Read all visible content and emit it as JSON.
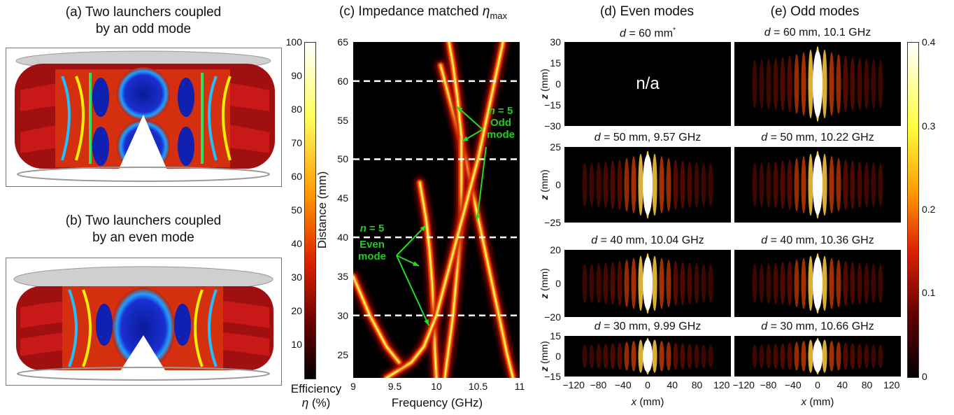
{
  "panels": {
    "a": {
      "title_line1": "(a) Two launchers coupled",
      "title_line2": "by an odd mode"
    },
    "b": {
      "title_line1": "(b) Two launchers coupled",
      "title_line2": "by an even mode"
    },
    "c": {
      "title_prefix": "(c) Impedance matched ",
      "title_symbol": "η",
      "title_sub": "max"
    },
    "d": {
      "title": "(d) Even modes"
    },
    "e": {
      "title": "(e) Odd modes"
    }
  },
  "efficiency_colorbar": {
    "ticks": [
      "100",
      "90",
      "80",
      "70",
      "60",
      "50",
      "40",
      "30",
      "20",
      "10"
    ],
    "label_line1": "Efficiency",
    "label_line2_symbol": "η",
    "label_line2_unit": " (%)",
    "colors": {
      "top": "#ffffff",
      "mid1": "#ffff40",
      "mid2": "#ff8000",
      "mid3": "#d02000",
      "bottom": "#000000"
    }
  },
  "field_colorbar": {
    "ticks": [
      "0.4",
      "0.3",
      "0.2",
      "0.1",
      "0"
    ]
  },
  "chart_data": {
    "type": "heatmap",
    "title": "(c) Impedance matched ηmax",
    "xlabel": "Frequency (GHz)",
    "ylabel": "Distance (mm)",
    "xlim": [
      9,
      11
    ],
    "ylim": [
      22,
      65
    ],
    "xticks": [
      "9",
      "9.5",
      "10",
      "10.5",
      "11"
    ],
    "yticks": [
      "25",
      "30",
      "35",
      "40",
      "45",
      "50",
      "55",
      "60",
      "65"
    ],
    "dashed_lines_mm": [
      30,
      40,
      50,
      60
    ],
    "annotations": {
      "odd": {
        "n_label": "n",
        "n_value": " = 5",
        "line2": "Odd",
        "line3": "mode"
      },
      "even": {
        "n_label": "n",
        "n_value": " = 5",
        "line2": "Even",
        "line3": "mode"
      }
    },
    "ridges": [
      {
        "points": [
          [
            10.05,
            62
          ],
          [
            10.15,
            58
          ],
          [
            10.25,
            54
          ],
          [
            10.35,
            50
          ],
          [
            10.45,
            45
          ],
          [
            10.55,
            40
          ],
          [
            10.65,
            35
          ],
          [
            10.75,
            30
          ],
          [
            10.85,
            25
          ],
          [
            10.92,
            22
          ]
        ]
      },
      {
        "points": [
          [
            10.1,
            22
          ],
          [
            10.15,
            26
          ],
          [
            10.2,
            30
          ],
          [
            10.25,
            36
          ],
          [
            10.3,
            42
          ],
          [
            10.3,
            48
          ],
          [
            10.3,
            53
          ],
          [
            10.25,
            58
          ],
          [
            10.2,
            62
          ],
          [
            10.15,
            65
          ]
        ]
      },
      {
        "points": [
          [
            10.0,
            22
          ],
          [
            9.98,
            26
          ],
          [
            9.97,
            30
          ],
          [
            9.95,
            34
          ],
          [
            9.92,
            38
          ],
          [
            9.88,
            42
          ],
          [
            9.85,
            44
          ],
          [
            9.8,
            47
          ]
        ]
      },
      {
        "points": [
          [
            9.4,
            22
          ],
          [
            9.55,
            23
          ],
          [
            9.7,
            24
          ],
          [
            9.85,
            26
          ],
          [
            10.0,
            30
          ],
          [
            10.1,
            34
          ],
          [
            10.2,
            38
          ],
          [
            10.3,
            42
          ],
          [
            10.4,
            46
          ],
          [
            10.5,
            50
          ],
          [
            10.6,
            55
          ],
          [
            10.7,
            60
          ],
          [
            10.8,
            65
          ]
        ]
      },
      {
        "points": [
          [
            9.0,
            35
          ],
          [
            9.2,
            30
          ],
          [
            9.4,
            26
          ],
          [
            9.55,
            24
          ]
        ]
      }
    ]
  },
  "field_maps": {
    "even": [
      {
        "d_label": "d",
        "caption": " = 60 mm",
        "sup": "*",
        "na": "n/a",
        "zticks": [
          "30",
          "15",
          "0",
          "−15",
          "−30"
        ]
      },
      {
        "d_label": "d",
        "caption": " = 50 mm, 9.57 GHz",
        "zticks": [
          "25",
          "0",
          "−25"
        ]
      },
      {
        "d_label": "d",
        "caption": " = 40 mm, 10.04 GHz",
        "zticks": [
          "20",
          "0",
          "−20"
        ]
      },
      {
        "d_label": "d",
        "caption": " = 30 mm, 9.99 GHz",
        "zticks": [
          "15",
          "0",
          "−15"
        ]
      }
    ],
    "odd": [
      {
        "d_label": "d",
        "caption": " = 60 mm, 10.1 GHz"
      },
      {
        "d_label": "d",
        "caption": " = 50 mm, 10.22 GHz"
      },
      {
        "d_label": "d",
        "caption": " = 40 mm, 10.36 GHz"
      },
      {
        "d_label": "d",
        "caption": " = 30 mm, 10.66 GHz"
      }
    ],
    "z_axis_label_italic": "z",
    "z_axis_label_unit": " (mm)",
    "x_axis_label_italic": "x",
    "x_axis_label_unit": " (mm)",
    "xticks": [
      "−120",
      "−80",
      "−40",
      "0",
      "40",
      "80",
      "120"
    ]
  }
}
